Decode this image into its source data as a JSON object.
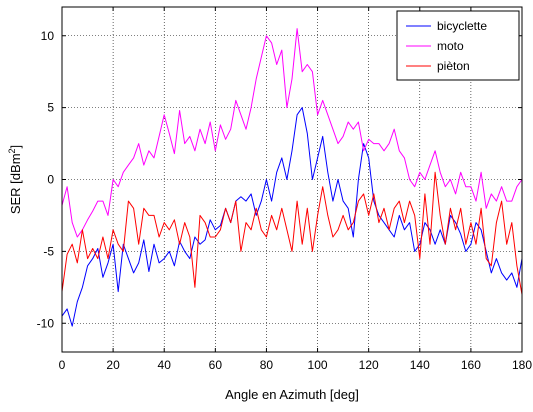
{
  "chart_data": {
    "type": "line",
    "xlabel": "Angle en Azimuth [deg]",
    "ylabel_main": "SER [dBm",
    "ylabel_sup": "2",
    "ylabel_end": "]",
    "xlim": [
      0,
      180
    ],
    "ylim": [
      -12,
      12
    ],
    "xticks": [
      "0",
      "20",
      "40",
      "60",
      "80",
      "100",
      "120",
      "140",
      "160",
      "180"
    ],
    "yticks": [
      "-10",
      "-5",
      "0",
      "5",
      "10"
    ],
    "grid": true,
    "legend_position": "top-right",
    "x": [
      0,
      2,
      4,
      6,
      8,
      10,
      12,
      14,
      16,
      18,
      20,
      22,
      24,
      26,
      28,
      30,
      32,
      34,
      36,
      38,
      40,
      42,
      44,
      46,
      48,
      50,
      52,
      54,
      56,
      58,
      60,
      62,
      64,
      66,
      68,
      70,
      72,
      74,
      76,
      78,
      80,
      82,
      84,
      86,
      88,
      90,
      92,
      94,
      96,
      98,
      100,
      102,
      104,
      106,
      108,
      110,
      112,
      114,
      116,
      118,
      120,
      122,
      124,
      126,
      128,
      130,
      132,
      134,
      136,
      138,
      140,
      142,
      144,
      146,
      148,
      150,
      152,
      154,
      156,
      158,
      160,
      162,
      164,
      166,
      168,
      170,
      172,
      174,
      176,
      178,
      180
    ],
    "series": [
      {
        "name": "bicyclette",
        "color": "#0000ff",
        "values": [
          -9.5,
          -9.0,
          -10.2,
          -8.5,
          -7.5,
          -6.0,
          -5.5,
          -4.8,
          -6.8,
          -5.8,
          -4.5,
          -7.8,
          -4.5,
          -5.5,
          -6.5,
          -5.8,
          -4.2,
          -6.4,
          -4.5,
          -5.8,
          -5.5,
          -5.0,
          -6.0,
          -4.3,
          -5.0,
          -5.5,
          -4.0,
          -4.5,
          -4.2,
          -2.8,
          -3.5,
          -3.2,
          -2.0,
          -3.0,
          -1.5,
          -1.2,
          -1.5,
          -1.0,
          -2.5,
          -1.5,
          0.0,
          -1.5,
          0.5,
          1.5,
          0.0,
          2.0,
          4.5,
          5.0,
          3.2,
          0.0,
          1.5,
          3.0,
          0.5,
          -1.5,
          0.0,
          -1.5,
          -2.0,
          -4.0,
          0.0,
          2.5,
          1.5,
          -1.5,
          -2.5,
          -3.0,
          -3.5,
          -4.0,
          -2.5,
          -3.5,
          -3.0,
          -5.0,
          -4.5,
          -3.0,
          -3.5,
          -4.5,
          -3.5,
          -4.5,
          -2.5,
          -3.0,
          -3.8,
          -5.0,
          -4.5,
          -3.0,
          -3.5,
          -5.0,
          -6.5,
          -5.5,
          -6.5,
          -7.0,
          -6.5,
          -7.5,
          -5.5
        ]
      },
      {
        "name": "moto",
        "color": "#ff00ff",
        "values": [
          -1.8,
          -0.5,
          -3.0,
          -4.0,
          -3.5,
          -2.8,
          -2.2,
          -1.5,
          -1.5,
          -2.5,
          0.0,
          -0.5,
          0.5,
          1.0,
          1.5,
          2.5,
          1.0,
          2.0,
          1.5,
          3.0,
          4.5,
          3.2,
          1.8,
          4.8,
          2.5,
          3.0,
          2.0,
          3.5,
          2.5,
          4.0,
          2.0,
          3.8,
          2.8,
          3.5,
          5.5,
          4.5,
          3.5,
          5.0,
          7.0,
          8.5,
          10.0,
          9.5,
          8.0,
          9.0,
          5.0,
          7.0,
          10.5,
          7.5,
          8.0,
          7.5,
          4.5,
          5.5,
          4.5,
          3.5,
          2.5,
          3.0,
          4.0,
          3.5,
          4.0,
          2.0,
          2.8,
          2.5,
          2.5,
          2.0,
          2.5,
          3.5,
          2.0,
          1.5,
          0.0,
          -0.5,
          0.5,
          0.0,
          1.0,
          2.0,
          0.5,
          -0.5,
          0.0,
          -1.0,
          0.5,
          -0.5,
          -0.5,
          -1.5,
          0.5,
          -2.0,
          -1.0,
          -1.5,
          -0.5,
          -1.5,
          -1.5,
          -0.5,
          0.0
        ]
      },
      {
        "name": "pièton",
        "color": "#ff0000",
        "values": [
          -7.8,
          -5.2,
          -4.5,
          -5.8,
          -3.5,
          -5.5,
          -4.8,
          -5.5,
          -4.0,
          -5.5,
          -3.5,
          -4.5,
          -5.0,
          -1.5,
          -2.0,
          -4.5,
          -2.0,
          -2.5,
          -2.5,
          -4.0,
          -3.0,
          -3.5,
          -2.8,
          -4.5,
          -3.0,
          -4.0,
          -7.5,
          -2.5,
          -3.0,
          -4.0,
          -4.0,
          -3.5,
          -2.0,
          -3.0,
          -1.5,
          -5.0,
          -3.0,
          -3.5,
          -2.0,
          -3.5,
          -4.0,
          -2.5,
          -3.5,
          -2.0,
          -3.5,
          -5.0,
          -1.5,
          -4.5,
          -2.0,
          -5.0,
          -2.5,
          -0.5,
          -2.5,
          -4.0,
          -3.5,
          -2.5,
          -3.5,
          -3.0,
          -1.5,
          -1.0,
          -2.5,
          -1.0,
          -3.0,
          -2.0,
          -3.5,
          -2.0,
          -1.5,
          -3.0,
          -1.5,
          -2.5,
          -5.5,
          -1.0,
          -4.5,
          0.5,
          -2.5,
          -4.5,
          -2.0,
          -3.5,
          -2.0,
          -4.5,
          -3.0,
          -4.5,
          -2.0,
          -5.5,
          -6.0,
          -3.0,
          -1.5,
          -4.5,
          -3.0,
          -6.0,
          -8.0
        ]
      }
    ]
  }
}
